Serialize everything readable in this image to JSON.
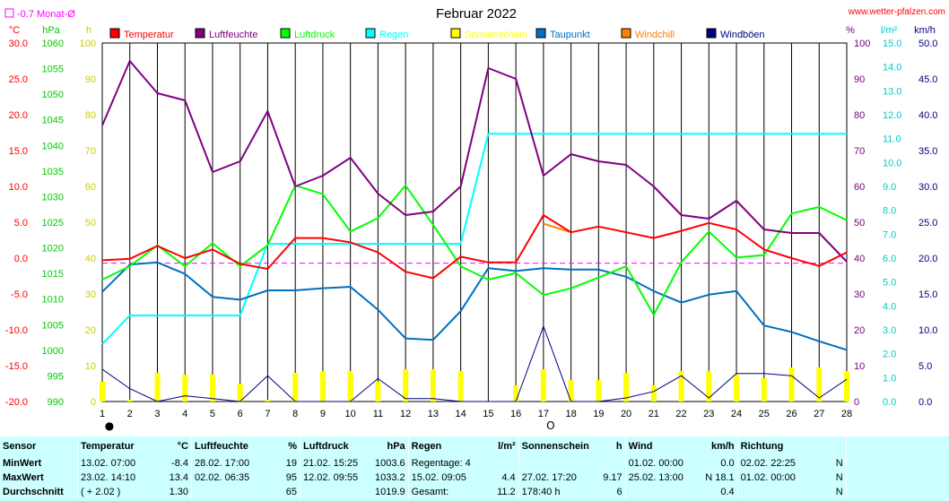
{
  "chart_data": {
    "type": "line",
    "title": "Februar 2022",
    "site": "www.wetter-pfalzen.com",
    "avg_note": "-0.7 Monat-Ø",
    "x": [
      1,
      2,
      3,
      4,
      5,
      6,
      7,
      8,
      9,
      10,
      11,
      12,
      13,
      14,
      15,
      16,
      17,
      18,
      19,
      20,
      21,
      22,
      23,
      24,
      25,
      26,
      27,
      28
    ],
    "moon_phases": [
      {
        "day": 1,
        "symbol": "●"
      },
      {
        "day": 17,
        "symbol": "O"
      }
    ],
    "axes": {
      "temp": {
        "unit": "°C",
        "min": -20,
        "max": 30,
        "ticks": [
          "30.0",
          "25.0",
          "20.0",
          "15.0",
          "10.0",
          "5.0",
          "0.0",
          "-5.0",
          "-10.0",
          "-15.0",
          "-20.0"
        ],
        "color": "#ff0000"
      },
      "pressure": {
        "unit": "hPa",
        "min": 990,
        "max": 1060,
        "ticks": [
          "1060",
          "1055",
          "1050",
          "1045",
          "1040",
          "1035",
          "1030",
          "1025",
          "1020",
          "1015",
          "1010",
          "1005",
          "1000",
          "995",
          "990"
        ],
        "color": "#00cc00"
      },
      "sunshine": {
        "unit": "h",
        "min": 0,
        "max": 100,
        "ticks": [
          "100",
          "90",
          "80",
          "70",
          "60",
          "50",
          "40",
          "30",
          "20",
          "10",
          "0"
        ],
        "color": "#cccc00"
      },
      "humidity": {
        "unit": "%",
        "min": 0,
        "max": 100,
        "ticks": [
          "100",
          "90",
          "80",
          "70",
          "60",
          "50",
          "40",
          "30",
          "20",
          "10",
          "0"
        ],
        "color": "#800080"
      },
      "rain": {
        "unit": "l/m²",
        "min": 0,
        "max": 15,
        "ticks": [
          "15.0",
          "14.0",
          "13.0",
          "12.0",
          "11.0",
          "10.0",
          "9.0",
          "8.0",
          "7.0",
          "6.0",
          "5.0",
          "4.0",
          "3.0",
          "2.0",
          "1.0",
          "0.0"
        ],
        "color": "#00cccc"
      },
      "wind": {
        "unit": "km/h",
        "min": 0,
        "max": 50,
        "ticks": [
          "50.0",
          "45.0",
          "40.0",
          "35.0",
          "30.0",
          "25.0",
          "20.0",
          "15.0",
          "10.0",
          "5.0",
          "0.0"
        ],
        "color": "#000080"
      }
    },
    "legend": [
      {
        "name": "Temperatur",
        "color": "#ff0000"
      },
      {
        "name": "Luftfeuchte",
        "color": "#800080"
      },
      {
        "name": "Luftdruck",
        "color": "#00ff00"
      },
      {
        "name": "Regen",
        "color": "#00ffff"
      },
      {
        "name": "Sonnenschein",
        "color": "#ffff00"
      },
      {
        "name": "Taupunkt",
        "color": "#0070c0"
      },
      {
        "name": "Windchill",
        "color": "#ff8000"
      },
      {
        "name": "Windböen",
        "color": "#000080"
      }
    ],
    "series": [
      {
        "name": "Temperatur",
        "axis": "temp",
        "color": "#ff0000",
        "values": [
          -0.3,
          -0.1,
          1.7,
          0,
          1.2,
          -0.8,
          -1.5,
          2.8,
          2.8,
          2.2,
          0.8,
          -1.9,
          -2.8,
          0.2,
          -0.6,
          -0.6,
          6.0,
          3.6,
          4.4,
          3.6,
          2.8,
          3.8,
          4.9,
          4.0,
          1.2,
          0,
          -1.1,
          0.8
        ]
      },
      {
        "name": "Windchill",
        "axis": "temp",
        "color": "#ff8000",
        "values": [
          null,
          null,
          null,
          null,
          null,
          null,
          null,
          null,
          null,
          null,
          null,
          null,
          null,
          null,
          null,
          null,
          4.8,
          3.6,
          null,
          null,
          null,
          null,
          null,
          null,
          null,
          null,
          null,
          null
        ]
      },
      {
        "name": "Taupunkt",
        "axis": "temp",
        "color": "#0070c0",
        "values": [
          -4.7,
          -0.9,
          -0.6,
          -2.2,
          -5.4,
          -5.8,
          -4.5,
          -4.5,
          -4.2,
          -4.0,
          -7.2,
          -11.2,
          -11.4,
          -7.4,
          -1.4,
          -1.8,
          -1.4,
          -1.6,
          -1.6,
          -2.6,
          -4.6,
          -6.2,
          -5.1,
          -4.6,
          -9.4,
          -10.3,
          -11.6,
          -12.8
        ]
      },
      {
        "name": "Luftfeuchte",
        "axis": "humidity",
        "color": "#800080",
        "values": [
          77,
          95,
          86,
          84,
          64,
          67,
          81,
          60,
          63,
          68,
          58,
          52,
          53,
          60,
          93,
          90,
          63,
          69,
          67,
          66,
          60,
          52,
          51,
          56,
          48,
          47,
          47,
          39
        ]
      },
      {
        "name": "Luftdruck",
        "axis": "pressure",
        "color": "#00ff00",
        "values": [
          1013.8,
          1016.4,
          1020.5,
          1016.4,
          1020.9,
          1016.4,
          1020.5,
          1032.2,
          1030.5,
          1023.2,
          1025.8,
          1032.2,
          1024.5,
          1016.4,
          1013.8,
          1015.1,
          1010.8,
          1012.1,
          1014.2,
          1016.4,
          1006.9,
          1017.2,
          1023.2,
          1018.1,
          1018.6,
          1026.7,
          1028.0,
          1025.4
        ]
      },
      {
        "name": "Regen",
        "axis": "rain",
        "color": "#00ffff",
        "cumulative": true,
        "values": [
          2.4,
          3.6,
          3.6,
          3.6,
          3.6,
          3.6,
          6.6,
          6.6,
          6.6,
          6.6,
          6.6,
          6.6,
          6.6,
          6.6,
          11.2,
          11.2,
          11.2,
          11.2,
          11.2,
          11.2,
          11.2,
          11.2,
          11.2,
          11.2,
          11.2,
          11.2,
          11.2,
          11.2
        ]
      },
      {
        "name": "Windböen",
        "axis": "wind",
        "color": "#000080",
        "values": [
          4.5,
          1.8,
          0,
          0.8,
          0.4,
          0,
          3.6,
          0,
          0,
          0,
          3.2,
          0.4,
          0.4,
          0,
          0,
          0,
          10.5,
          0,
          0,
          0.5,
          1.4,
          3.6,
          0.5,
          3.9,
          3.9,
          3.6,
          0.5,
          3.1
        ]
      },
      {
        "name": "Sonnenschein",
        "axis": "sunshine",
        "color": "#ffff00",
        "type": "bar",
        "values": [
          5.5,
          0.5,
          8,
          7.5,
          7.5,
          5,
          0.5,
          8,
          8.5,
          8.5,
          5.5,
          9,
          9,
          8.5,
          0,
          4.5,
          9,
          6,
          6,
          8,
          4.5,
          8.5,
          8.5,
          7.5,
          6.5,
          9.5,
          9.5,
          8.5
        ]
      }
    ],
    "reference_lines": [
      {
        "axis": "temp",
        "value": -0.7,
        "color": "#ff00ff",
        "style": "dashed"
      }
    ]
  },
  "stats": {
    "headers": [
      {
        "label": "Sensor",
        "unit": ""
      },
      {
        "label": "Temperatur",
        "unit": "°C"
      },
      {
        "label": "Luftfeuchte",
        "unit": "%"
      },
      {
        "label": "Luftdruck",
        "unit": "hPa"
      },
      {
        "label": "Regen",
        "unit": "l/m²"
      },
      {
        "label": "Sonnenschein",
        "unit": "h"
      },
      {
        "label": "Wind",
        "unit": "km/h"
      },
      {
        "label": "Richtung",
        "unit": ""
      }
    ],
    "rows": [
      {
        "label": "MinWert",
        "temp": [
          "13.02.  07:00",
          "-8.4"
        ],
        "hum": [
          "28.02.  17:00",
          "19"
        ],
        "press": [
          "21.02.  15:25",
          "1003.6"
        ],
        "rain": [
          "Regentage: 4",
          ""
        ],
        "sun": [
          "",
          ""
        ],
        "wind": [
          "01.02.  00:00",
          "0.0"
        ],
        "dir": [
          "02.02.  22:25",
          "N"
        ]
      },
      {
        "label": "MaxWert",
        "temp": [
          "23.02.  14:10",
          "13.4"
        ],
        "hum": [
          "02.02.  06:35",
          "95"
        ],
        "press": [
          "12.02.  09:55",
          "1033.2"
        ],
        "rain": [
          "15.02.  09:05",
          "4.4"
        ],
        "sun": [
          "27.02.  17:20",
          "9.17"
        ],
        "wind": [
          "25.02.  13:00",
          "N 18.1"
        ],
        "dir": [
          "01.02.  00:00",
          "N"
        ]
      },
      {
        "label": "Durchschnitt",
        "temp": [
          "( + 2.02 )",
          "1.30"
        ],
        "hum": [
          "",
          "65"
        ],
        "press": [
          "",
          "1019.9"
        ],
        "rain": [
          "Gesamt:",
          "11.2"
        ],
        "sun": [
          "178:40 h",
          "6"
        ],
        "wind": [
          "",
          "0.4"
        ],
        "dir": [
          "",
          "N"
        ]
      }
    ]
  }
}
